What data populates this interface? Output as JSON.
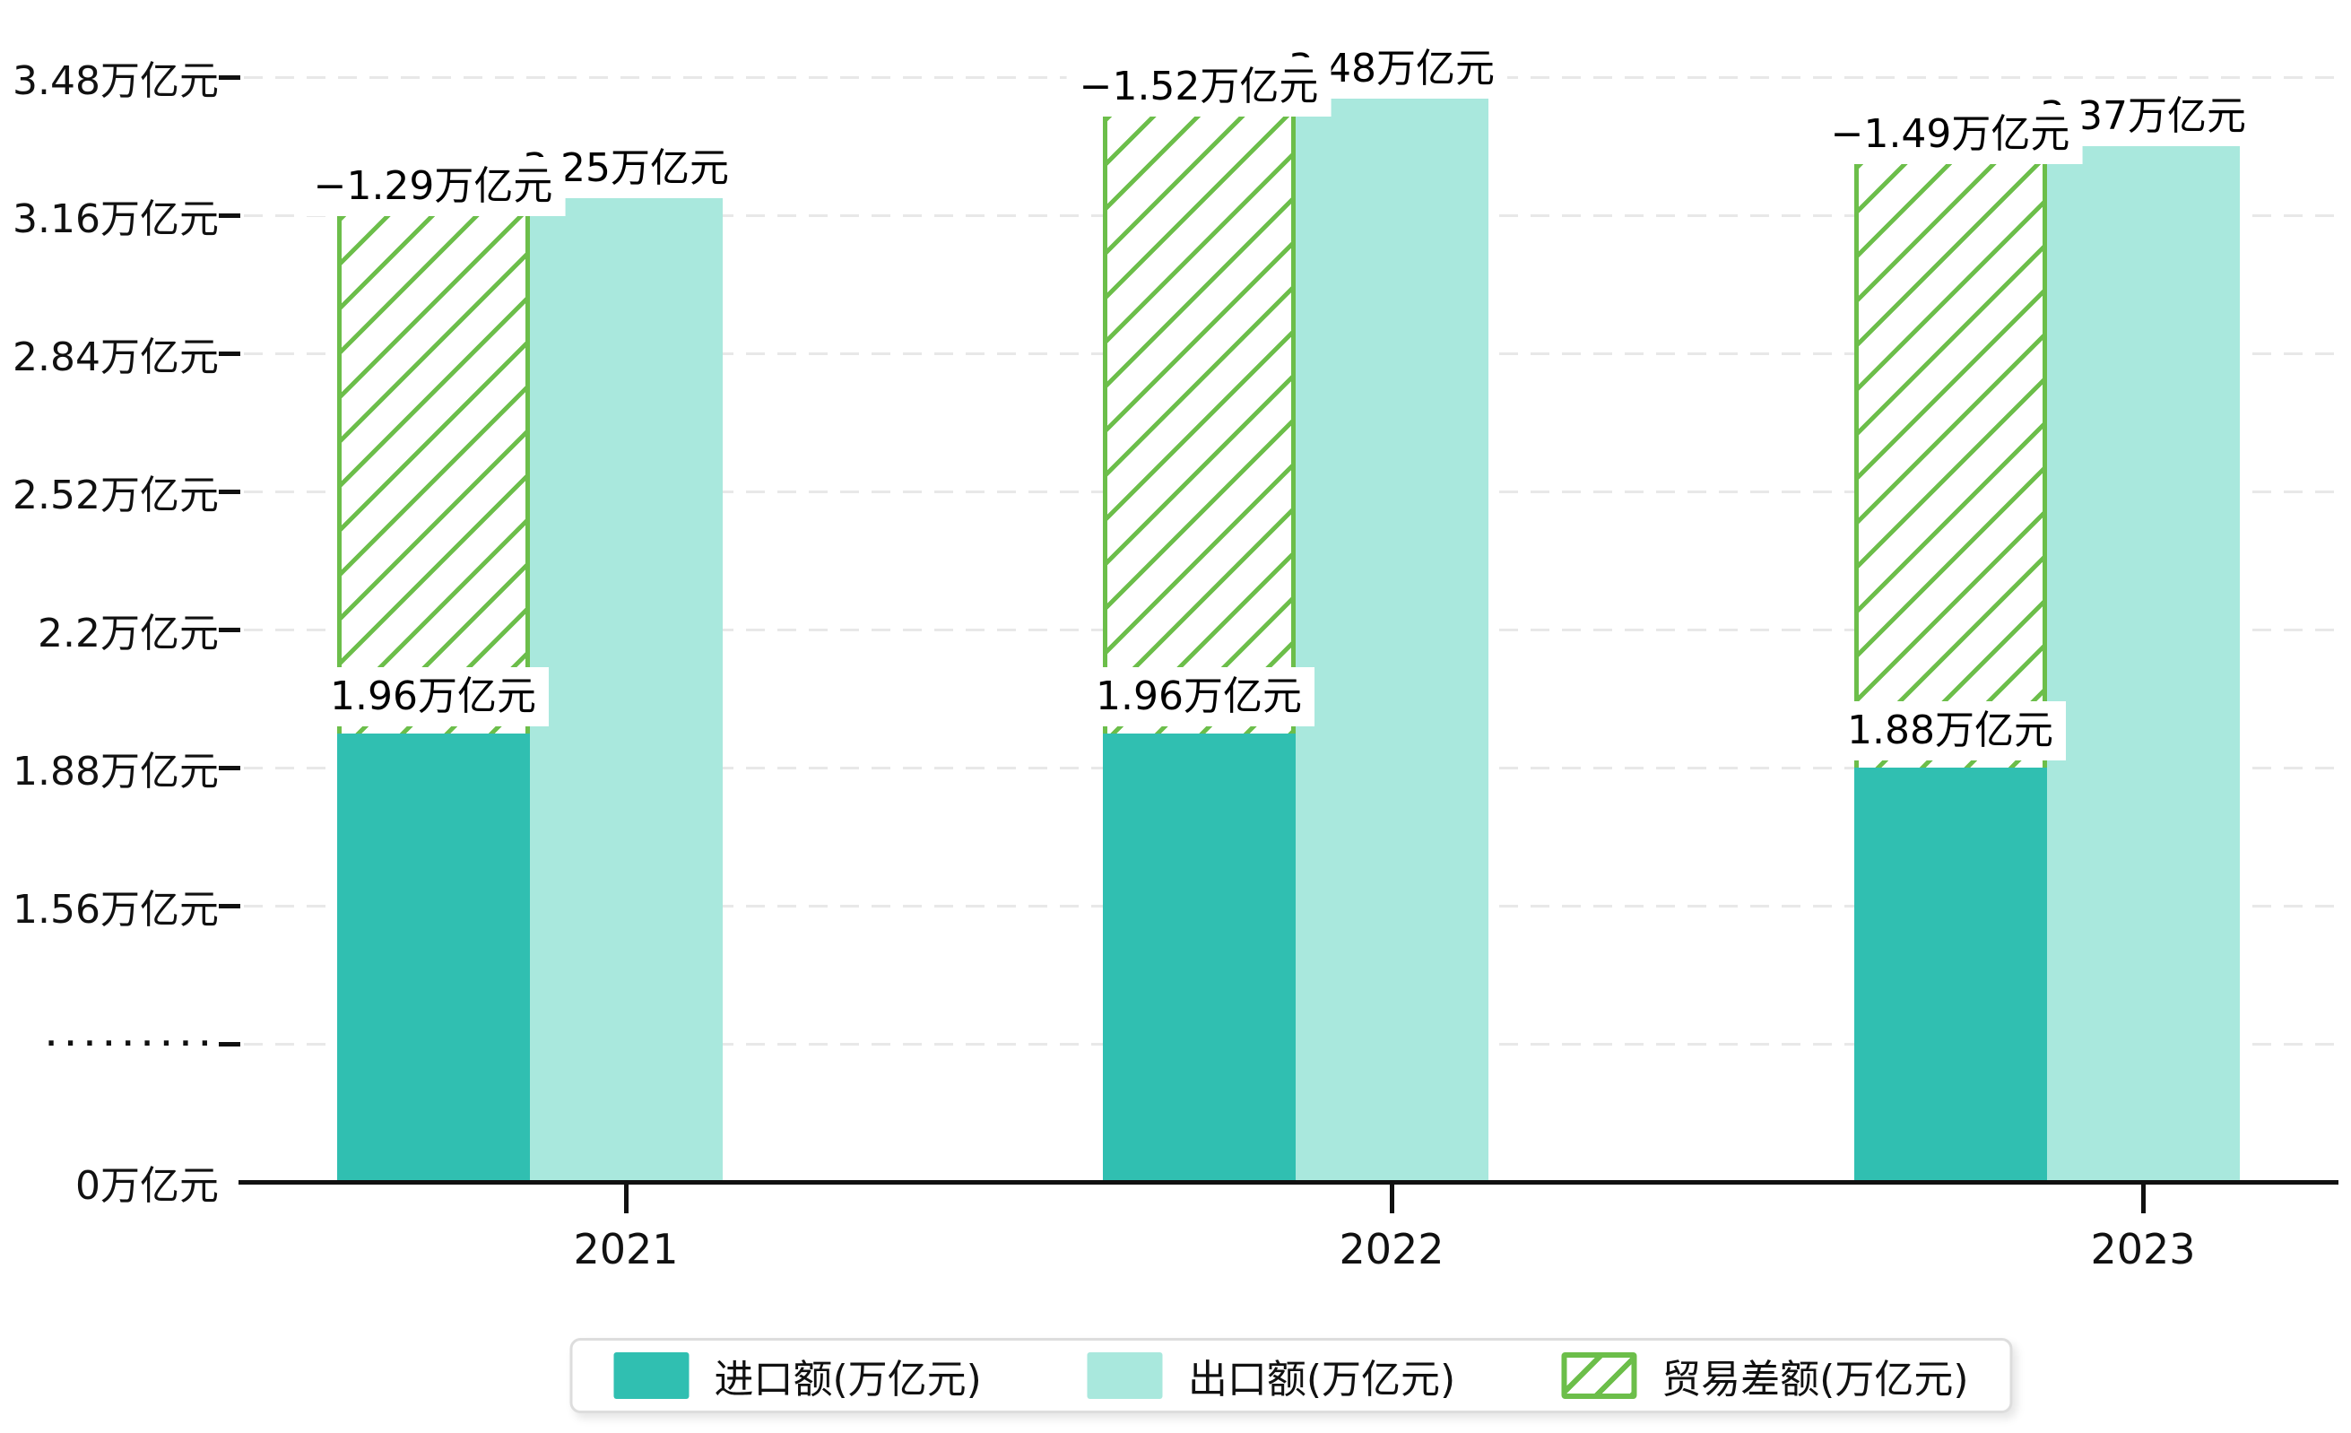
{
  "chart_data": {
    "type": "bar",
    "categories": [
      "2021",
      "2022",
      "2023"
    ],
    "series": [
      {
        "name": "进口额(万亿元)",
        "values": [
          1.96,
          1.96,
          1.88
        ],
        "color": "#30BFB1",
        "style": "solid"
      },
      {
        "name": "出口额(万亿元)",
        "values": [
          3.25,
          3.48,
          3.37
        ],
        "color": "#A9E8DD",
        "style": "solid"
      },
      {
        "name": "贸易差额(万亿元)",
        "values": [
          -1.29,
          -1.52,
          -1.49
        ],
        "color": "#6CBE4A",
        "style": "hatched",
        "drawn_as": "bar spanning from import value up to export value"
      }
    ],
    "title": "",
    "xlabel": "",
    "ylabel": "",
    "y_axis": {
      "unit": "万亿元",
      "ticks_bottom_to_top": [
        "0万亿元",
        "·········",
        "1.56万亿元",
        "1.88万亿元",
        "2.2万亿元",
        "2.52万亿元",
        "2.84万亿元",
        "3.16万亿元",
        "3.48万亿元"
      ],
      "axis_break": "dotted row between 0 and 1.56",
      "grid": "dashed light gray horizontal lines"
    },
    "legend_position": "bottom"
  },
  "data_labels": {
    "groups": [
      {
        "year": "2021",
        "import": "1.96万亿元",
        "export": "3.25万亿元",
        "balance": "−1.29万亿元"
      },
      {
        "year": "2022",
        "import": "1.96万亿元",
        "export": "3.48万亿元",
        "balance": "−1.52万亿元"
      },
      {
        "year": "2023",
        "import": "1.88万亿元",
        "export": "3.37万亿元",
        "balance": "−1.49万亿元"
      }
    ]
  },
  "legend": {
    "items": [
      {
        "label": "进口额(万亿元)",
        "swatch": "import-solid"
      },
      {
        "label": "出口额(万亿元)",
        "swatch": "export-solid"
      },
      {
        "label": "贸易差额(万亿元)",
        "swatch": "balance-hatch"
      }
    ]
  },
  "colors": {
    "import_bar": "#30BFB1",
    "export_bar": "#A9E8DD",
    "balance_hatch": "#6CBE4A",
    "gridline": "#E8E8E8",
    "axis": "#111111",
    "label_background": "#FFFFFF",
    "legend_border": "#DDDDDD"
  }
}
